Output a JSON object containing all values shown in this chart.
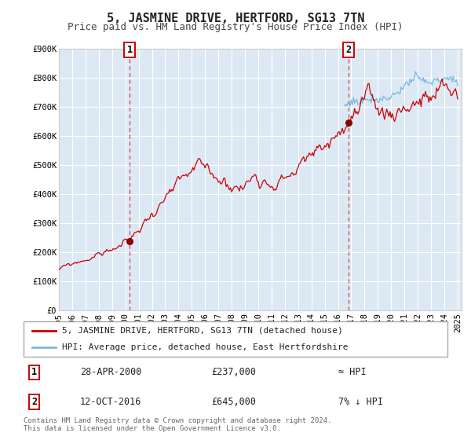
{
  "title": "5, JASMINE DRIVE, HERTFORD, SG13 7TN",
  "subtitle": "Price paid vs. HM Land Registry's House Price Index (HPI)",
  "ylim": [
    0,
    900000
  ],
  "xlim_start": 1995.0,
  "xlim_end": 2025.3,
  "yticks": [
    0,
    100000,
    200000,
    300000,
    400000,
    500000,
    600000,
    700000,
    800000,
    900000
  ],
  "ytick_labels": [
    "£0",
    "£100K",
    "£200K",
    "£300K",
    "£400K",
    "£500K",
    "£600K",
    "£700K",
    "£800K",
    "£900K"
  ],
  "xticks": [
    1995,
    1996,
    1997,
    1998,
    1999,
    2000,
    2001,
    2002,
    2003,
    2004,
    2005,
    2006,
    2007,
    2008,
    2009,
    2010,
    2011,
    2012,
    2013,
    2014,
    2015,
    2016,
    2017,
    2018,
    2019,
    2020,
    2021,
    2022,
    2023,
    2024,
    2025
  ],
  "hpi_color": "#7fb8d8",
  "price_color": "#cc0000",
  "sale1_x": 2000.32,
  "sale1_y": 237000,
  "sale2_x": 2016.79,
  "sale2_y": 645000,
  "dashed_line_color": "#cc0000",
  "bg_color": "#dce9f5",
  "grid_color": "#ffffff",
  "legend_label_price": "5, JASMINE DRIVE, HERTFORD, SG13 7TN (detached house)",
  "legend_label_hpi": "HPI: Average price, detached house, East Hertfordshire",
  "table_row1": [
    "1",
    "28-APR-2000",
    "£237,000",
    "≈ HPI"
  ],
  "table_row2": [
    "2",
    "12-OCT-2016",
    "£645,000",
    "7% ↓ HPI"
  ],
  "footnote": "Contains HM Land Registry data © Crown copyright and database right 2024.\nThis data is licensed under the Open Government Licence v3.0.",
  "title_fontsize": 11,
  "subtitle_fontsize": 9,
  "tick_fontsize": 7.5,
  "hpi_start_year": 2016.5
}
